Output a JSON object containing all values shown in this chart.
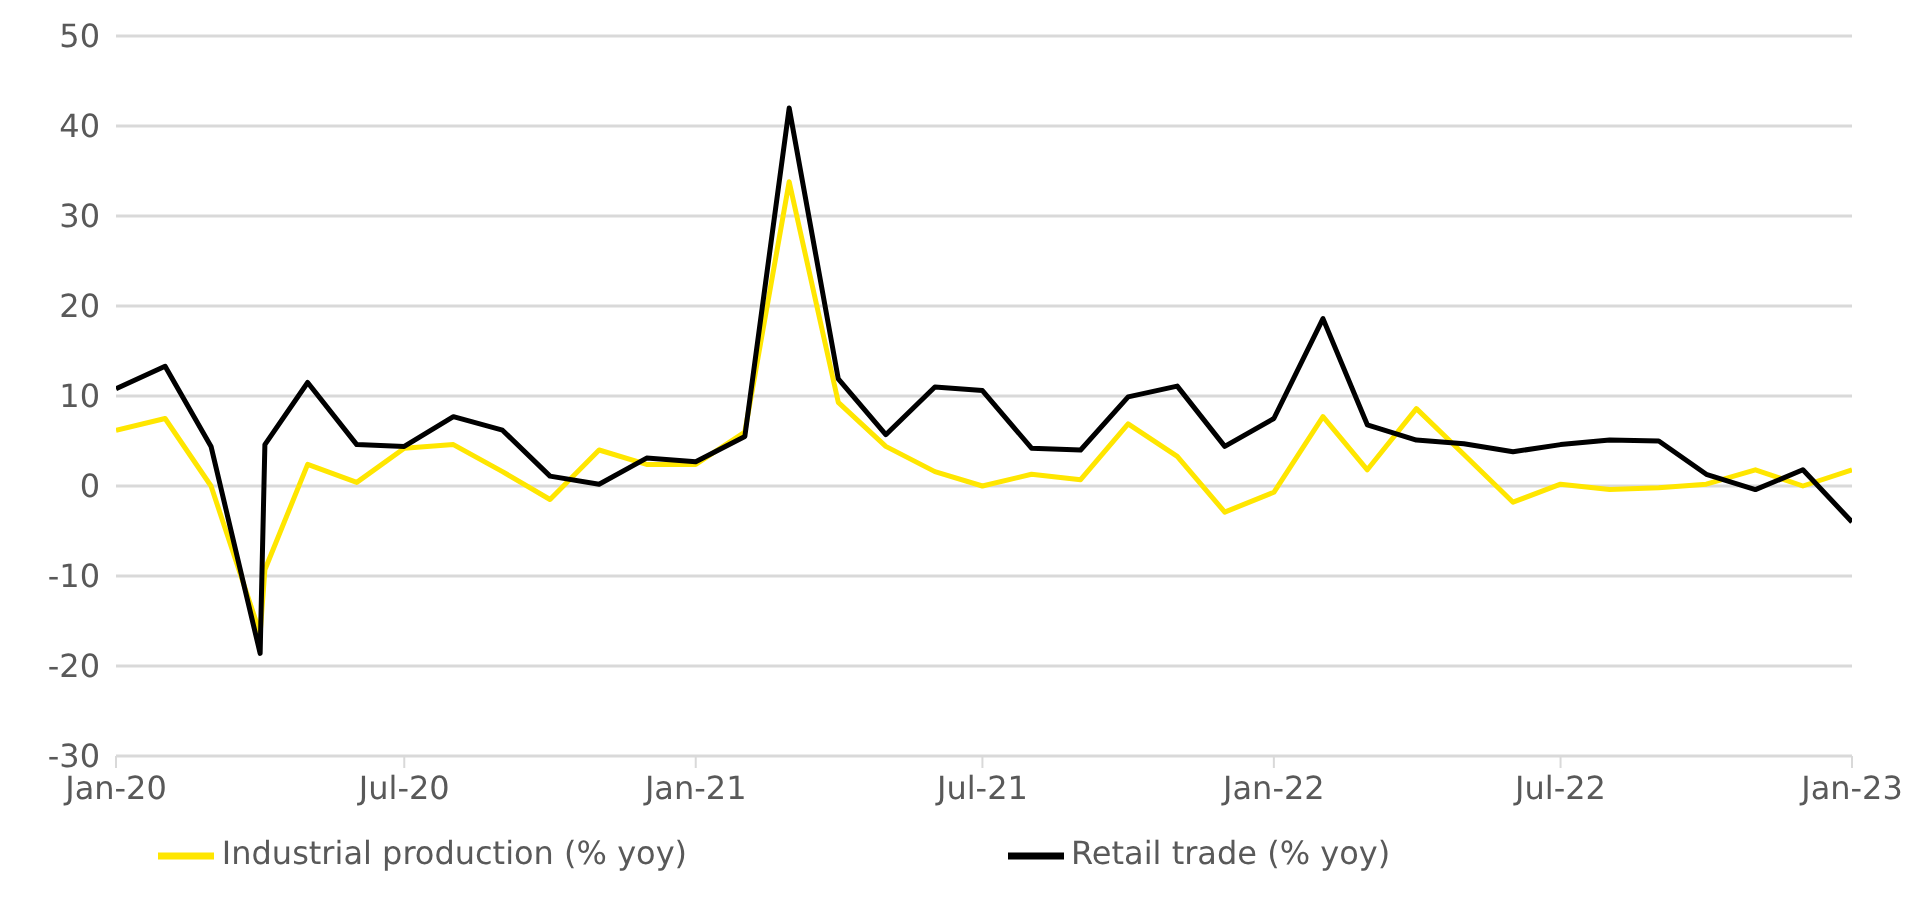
{
  "chart_data": {
    "type": "line",
    "x": [
      "2020-01",
      "2020-02",
      "2020-03",
      "2020-04",
      "2020-04-04",
      "2020-05",
      "2020-06",
      "2020-07",
      "2020-08",
      "2020-09",
      "2020-10",
      "2020-11",
      "2020-12",
      "2021-01",
      "2021-02",
      "2021-03",
      "2021-04",
      "2021-05",
      "2021-06",
      "2021-07",
      "2021-08",
      "2021-09",
      "2021-10",
      "2021-11",
      "2021-12",
      "2022-01",
      "2022-02",
      "2022-03",
      "2022-04",
      "2022-05",
      "2022-06",
      "2022-07",
      "2022-08",
      "2022-09",
      "2022-10",
      "2022-11",
      "2022-12",
      "2023-01"
    ],
    "series": [
      {
        "name": "Industrial production (% yoy)",
        "color": "#ffe600",
        "values": [
          6.2,
          7.5,
          0,
          -16.4,
          -9.3,
          2.4,
          0.4,
          4.2,
          4.6,
          1.6,
          -1.5,
          4.0,
          2.4,
          2.4,
          6.0,
          33.8,
          9.3,
          4.4,
          1.6,
          0,
          1.3,
          0.7,
          6.9,
          3.3,
          -2.9,
          -0.7,
          7.7,
          1.8,
          8.6,
          3.5,
          -1.8,
          0.2,
          -0.4,
          -0.2,
          0.2,
          1.8,
          0,
          1.8
        ]
      },
      {
        "name": "Retail trade (% yoy)",
        "color": "#000000",
        "values": [
          10.8,
          13.3,
          4.4,
          -18.6,
          4.6,
          11.5,
          4.6,
          4.4,
          7.7,
          6.2,
          1.1,
          0.2,
          3.1,
          2.7,
          5.5,
          42,
          11.9,
          5.7,
          11.0,
          10.6,
          4.2,
          4.0,
          9.9,
          11.1,
          4.4,
          7.5,
          18.6,
          6.8,
          5.1,
          4.7,
          3.8,
          4.6,
          5.1,
          5.0,
          1.3,
          -0.4,
          1.8,
          -4.0
        ]
      }
    ],
    "xlim": [
      "2020-01",
      "2023-01"
    ],
    "xticks": [
      {
        "value": "2020-01",
        "label": "Jan-20"
      },
      {
        "value": "2020-07",
        "label": "Jul-20"
      },
      {
        "value": "2021-01",
        "label": "Jan-21"
      },
      {
        "value": "2021-07",
        "label": "Jul-21"
      },
      {
        "value": "2022-01",
        "label": "Jan-22"
      },
      {
        "value": "2022-07",
        "label": "Jul-22"
      },
      {
        "value": "2023-01",
        "label": "Jan-23"
      }
    ],
    "ylim": [
      -30,
      50
    ],
    "yticks": [
      -30,
      -20,
      -10,
      0,
      10,
      20,
      30,
      40,
      50
    ],
    "grid": "y",
    "legend": "bottom",
    "marker": "none",
    "line_style": "solid"
  }
}
